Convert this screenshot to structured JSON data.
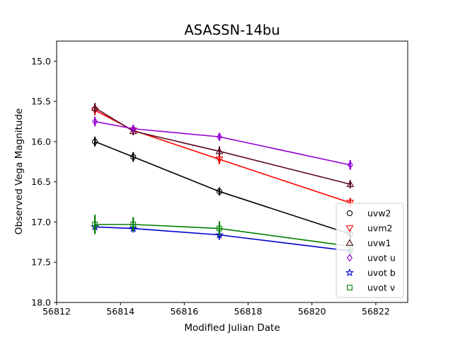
{
  "chart_data": {
    "type": "line",
    "title": "ASASSN-14bu",
    "xlabel": "Modified Julian Date",
    "ylabel": "Observed Vega Magnitude",
    "xlim": [
      56812,
      56823
    ],
    "ylim": [
      18.0,
      14.75
    ],
    "y_inverted": true,
    "grid": false,
    "legend_position": "lower-right",
    "x_ticks": [
      56812,
      56814,
      56816,
      56818,
      56820,
      56822
    ],
    "x_tick_labels": [
      "56812",
      "56814",
      "56816",
      "56818",
      "56820",
      "56822"
    ],
    "y_ticks": [
      15.0,
      15.5,
      16.0,
      16.5,
      17.0,
      17.5,
      18.0
    ],
    "y_tick_labels": [
      "15.0",
      "15.5",
      "16.0",
      "16.5",
      "17.0",
      "17.5",
      "18.0"
    ],
    "series": [
      {
        "name": "uvw2",
        "color": "#000000",
        "marker": "circle",
        "x": [
          56813.2,
          56814.4,
          56817.1,
          56821.2
        ],
        "y": [
          16.0,
          16.19,
          16.62,
          17.15
        ],
        "yerr": [
          0.06,
          0.06,
          0.05,
          0.07
        ]
      },
      {
        "name": "uvm2",
        "color": "#ff0000",
        "marker": "triangle-down",
        "x": [
          56813.2,
          56814.4,
          56817.1,
          56821.2
        ],
        "y": [
          15.61,
          15.86,
          16.22,
          16.76
        ],
        "yerr": [
          0.06,
          0.05,
          0.06,
          0.06
        ]
      },
      {
        "name": "uvw1",
        "color": "#5c0a1e",
        "marker": "triangle-up",
        "x": [
          56813.2,
          56814.4,
          56817.1,
          56821.2
        ],
        "y": [
          15.58,
          15.87,
          16.12,
          16.53
        ],
        "yerr": [
          0.06,
          0.05,
          0.06,
          0.05
        ]
      },
      {
        "name": "uvot u",
        "color": "#9400d3",
        "marker": "diamond",
        "x": [
          56813.2,
          56814.4,
          56817.1,
          56821.2
        ],
        "y": [
          15.75,
          15.84,
          15.94,
          16.29
        ],
        "yerr": [
          0.06,
          0.05,
          0.05,
          0.06
        ]
      },
      {
        "name": "uvot b",
        "color": "#0000cc",
        "marker": "star",
        "x": [
          56813.2,
          56814.4,
          56817.1,
          56821.2
        ],
        "y": [
          17.06,
          17.08,
          17.16,
          17.36
        ],
        "yerr": [
          0.06,
          0.05,
          0.06,
          0.07
        ]
      },
      {
        "name": "uvot v",
        "color": "#008000",
        "marker": "square",
        "x": [
          56813.2,
          56814.4,
          56817.1,
          56821.2
        ],
        "y": [
          17.03,
          17.03,
          17.08,
          17.3
        ],
        "yerr": [
          0.12,
          0.09,
          0.09,
          0.1
        ]
      }
    ]
  }
}
